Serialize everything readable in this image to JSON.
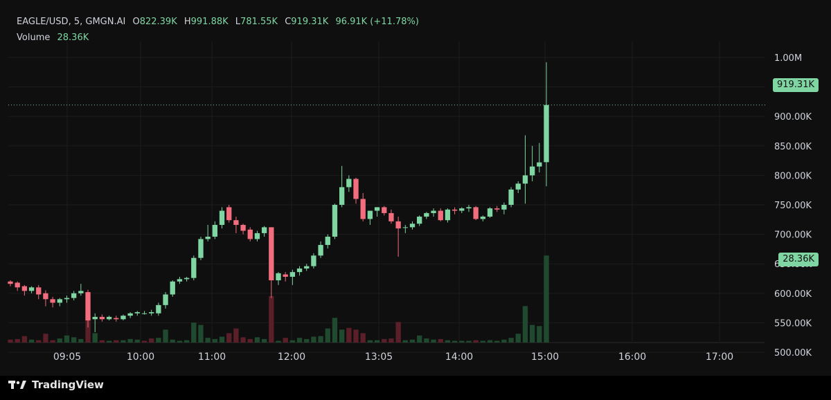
{
  "legend": {
    "symbol": "EAGLE/USD, 5, GMGN.AI",
    "open_label": "O",
    "open": "822.39K",
    "high_label": "H",
    "high": "991.88K",
    "low_label": "L",
    "low": "781.55K",
    "close_label": "C",
    "close": "919.31K",
    "change": "96.91K (+11.78%)",
    "volume_label": "Volume",
    "volume": "28.36K"
  },
  "price_tag": "919.31K",
  "volume_tag": "28.36K",
  "footer": {
    "brand": "TradingView"
  },
  "colors": {
    "up": "#7fd6a3",
    "down": "#f26d7d",
    "up_vol": "#1f4a2f",
    "down_vol": "#5a1f28",
    "bg": "#0f0f0f",
    "grid": "#1c1c1c",
    "text": "#d1d4dc"
  },
  "chart_data": {
    "type": "candlestick",
    "interval": "5",
    "yticks": [
      "1.00M",
      "950.00K",
      "900.00K",
      "850.00K",
      "800.00K",
      "750.00K",
      "700.00K",
      "650.00K",
      "600.00K",
      "550.00K",
      "500.00K"
    ],
    "ytick_values": [
      1000000,
      950000,
      900000,
      850000,
      800000,
      750000,
      700000,
      650000,
      600000,
      550000,
      500000
    ],
    "xticks": [
      "09:05",
      "10:00",
      "11:00",
      "12:00",
      "13:05",
      "14:00",
      "15:00",
      "16:00",
      "17:00"
    ],
    "ylim": [
      485000,
      1030000
    ],
    "last_price": 919310,
    "last_volume": 28360,
    "candles": [
      {
        "o": 620,
        "h": 622,
        "l": 612,
        "c": 616
      },
      {
        "o": 618,
        "h": 620,
        "l": 604,
        "c": 610
      },
      {
        "o": 612,
        "h": 614,
        "l": 596,
        "c": 604
      },
      {
        "o": 604,
        "h": 612,
        "l": 600,
        "c": 610
      },
      {
        "o": 610,
        "h": 614,
        "l": 590,
        "c": 598
      },
      {
        "o": 600,
        "h": 605,
        "l": 578,
        "c": 590
      },
      {
        "o": 590,
        "h": 594,
        "l": 576,
        "c": 584
      },
      {
        "o": 584,
        "h": 592,
        "l": 578,
        "c": 590
      },
      {
        "o": 590,
        "h": 596,
        "l": 584,
        "c": 592
      },
      {
        "o": 592,
        "h": 604,
        "l": 588,
        "c": 600
      },
      {
        "o": 600,
        "h": 616,
        "l": 596,
        "c": 604
      },
      {
        "o": 602,
        "h": 606,
        "l": 542,
        "c": 554
      },
      {
        "o": 556,
        "h": 566,
        "l": 534,
        "c": 560
      },
      {
        "o": 560,
        "h": 564,
        "l": 552,
        "c": 556
      },
      {
        "o": 556,
        "h": 562,
        "l": 554,
        "c": 560
      },
      {
        "o": 558,
        "h": 562,
        "l": 552,
        "c": 556
      },
      {
        "o": 556,
        "h": 564,
        "l": 554,
        "c": 562
      },
      {
        "o": 562,
        "h": 568,
        "l": 558,
        "c": 566
      },
      {
        "o": 566,
        "h": 570,
        "l": 562,
        "c": 568
      },
      {
        "o": 566,
        "h": 570,
        "l": 564,
        "c": 566
      },
      {
        "o": 566,
        "h": 572,
        "l": 562,
        "c": 568
      },
      {
        "o": 566,
        "h": 584,
        "l": 562,
        "c": 580
      },
      {
        "o": 580,
        "h": 602,
        "l": 574,
        "c": 598
      },
      {
        "o": 598,
        "h": 622,
        "l": 594,
        "c": 620
      },
      {
        "o": 620,
        "h": 628,
        "l": 616,
        "c": 624
      },
      {
        "o": 624,
        "h": 628,
        "l": 620,
        "c": 626
      },
      {
        "o": 626,
        "h": 664,
        "l": 622,
        "c": 660
      },
      {
        "o": 660,
        "h": 696,
        "l": 656,
        "c": 692
      },
      {
        "o": 692,
        "h": 716,
        "l": 688,
        "c": 696
      },
      {
        "o": 696,
        "h": 722,
        "l": 692,
        "c": 716
      },
      {
        "o": 716,
        "h": 746,
        "l": 710,
        "c": 740
      },
      {
        "o": 746,
        "h": 750,
        "l": 720,
        "c": 724
      },
      {
        "o": 724,
        "h": 730,
        "l": 702,
        "c": 716
      },
      {
        "o": 716,
        "h": 718,
        "l": 700,
        "c": 706
      },
      {
        "o": 708,
        "h": 712,
        "l": 688,
        "c": 692
      },
      {
        "o": 692,
        "h": 706,
        "l": 688,
        "c": 702
      },
      {
        "o": 702,
        "h": 714,
        "l": 696,
        "c": 712
      },
      {
        "o": 712,
        "h": 712,
        "l": 592,
        "c": 622
      },
      {
        "o": 622,
        "h": 636,
        "l": 614,
        "c": 634
      },
      {
        "o": 632,
        "h": 636,
        "l": 620,
        "c": 628
      },
      {
        "o": 628,
        "h": 640,
        "l": 614,
        "c": 636
      },
      {
        "o": 636,
        "h": 646,
        "l": 630,
        "c": 642
      },
      {
        "o": 642,
        "h": 650,
        "l": 638,
        "c": 646
      },
      {
        "o": 646,
        "h": 668,
        "l": 642,
        "c": 664
      },
      {
        "o": 664,
        "h": 688,
        "l": 660,
        "c": 682
      },
      {
        "o": 682,
        "h": 700,
        "l": 676,
        "c": 696
      },
      {
        "o": 696,
        "h": 752,
        "l": 692,
        "c": 750
      },
      {
        "o": 750,
        "h": 816,
        "l": 746,
        "c": 780
      },
      {
        "o": 780,
        "h": 800,
        "l": 772,
        "c": 794
      },
      {
        "o": 794,
        "h": 796,
        "l": 752,
        "c": 760
      },
      {
        "o": 760,
        "h": 770,
        "l": 722,
        "c": 726
      },
      {
        "o": 726,
        "h": 736,
        "l": 716,
        "c": 740
      },
      {
        "o": 740,
        "h": 746,
        "l": 730,
        "c": 746
      },
      {
        "o": 746,
        "h": 748,
        "l": 732,
        "c": 736
      },
      {
        "o": 736,
        "h": 742,
        "l": 718,
        "c": 722
      },
      {
        "o": 722,
        "h": 730,
        "l": 662,
        "c": 710
      },
      {
        "o": 712,
        "h": 716,
        "l": 702,
        "c": 712
      },
      {
        "o": 712,
        "h": 722,
        "l": 708,
        "c": 718
      },
      {
        "o": 718,
        "h": 732,
        "l": 714,
        "c": 730
      },
      {
        "o": 730,
        "h": 738,
        "l": 726,
        "c": 736
      },
      {
        "o": 736,
        "h": 744,
        "l": 730,
        "c": 740
      },
      {
        "o": 740,
        "h": 744,
        "l": 722,
        "c": 724
      },
      {
        "o": 724,
        "h": 744,
        "l": 720,
        "c": 742
      },
      {
        "o": 742,
        "h": 746,
        "l": 734,
        "c": 740
      },
      {
        "o": 740,
        "h": 746,
        "l": 736,
        "c": 744
      },
      {
        "o": 744,
        "h": 750,
        "l": 738,
        "c": 746
      },
      {
        "o": 746,
        "h": 748,
        "l": 724,
        "c": 726
      },
      {
        "o": 726,
        "h": 732,
        "l": 722,
        "c": 730
      },
      {
        "o": 730,
        "h": 746,
        "l": 728,
        "c": 744
      },
      {
        "o": 744,
        "h": 748,
        "l": 738,
        "c": 742
      },
      {
        "o": 742,
        "h": 754,
        "l": 734,
        "c": 750
      },
      {
        "o": 750,
        "h": 780,
        "l": 746,
        "c": 776
      },
      {
        "o": 776,
        "h": 790,
        "l": 770,
        "c": 786
      },
      {
        "o": 786,
        "h": 868,
        "l": 752,
        "c": 800
      },
      {
        "o": 800,
        "h": 850,
        "l": 790,
        "c": 815
      },
      {
        "o": 815,
        "h": 855,
        "l": 805,
        "c": 822
      },
      {
        "o": 822.39,
        "h": 991.88,
        "l": 781.55,
        "c": 919.31
      }
    ],
    "volumes": [
      {
        "v": 5,
        "up": false
      },
      {
        "v": 6,
        "up": false
      },
      {
        "v": 11,
        "up": false
      },
      {
        "v": 5,
        "up": true
      },
      {
        "v": 4,
        "up": false
      },
      {
        "v": 15,
        "up": false
      },
      {
        "v": 4,
        "up": false
      },
      {
        "v": 7,
        "up": true
      },
      {
        "v": 12,
        "up": true
      },
      {
        "v": 9,
        "up": true
      },
      {
        "v": 6,
        "up": true
      },
      {
        "v": 50,
        "up": false
      },
      {
        "v": 16,
        "up": true
      },
      {
        "v": 4,
        "up": false
      },
      {
        "v": 3,
        "up": true
      },
      {
        "v": 4,
        "up": false
      },
      {
        "v": 4,
        "up": true
      },
      {
        "v": 6,
        "up": true
      },
      {
        "v": 5,
        "up": true
      },
      {
        "v": 3,
        "up": false
      },
      {
        "v": 7,
        "up": false
      },
      {
        "v": 8,
        "up": true
      },
      {
        "v": 22,
        "up": true
      },
      {
        "v": 5,
        "up": true
      },
      {
        "v": 3,
        "up": true
      },
      {
        "v": 4,
        "up": true
      },
      {
        "v": 34,
        "up": true
      },
      {
        "v": 30,
        "up": true
      },
      {
        "v": 8,
        "up": true
      },
      {
        "v": 6,
        "up": true
      },
      {
        "v": 10,
        "up": true
      },
      {
        "v": 16,
        "up": false
      },
      {
        "v": 24,
        "up": false
      },
      {
        "v": 9,
        "up": false
      },
      {
        "v": 6,
        "up": false
      },
      {
        "v": 9,
        "up": true
      },
      {
        "v": 6,
        "up": true
      },
      {
        "v": 79,
        "up": false
      },
      {
        "v": 3,
        "up": true
      },
      {
        "v": 8,
        "up": false
      },
      {
        "v": 4,
        "up": true
      },
      {
        "v": 8,
        "up": true
      },
      {
        "v": 6,
        "up": true
      },
      {
        "v": 10,
        "up": true
      },
      {
        "v": 11,
        "up": true
      },
      {
        "v": 24,
        "up": true
      },
      {
        "v": 42,
        "up": true
      },
      {
        "v": 22,
        "up": true
      },
      {
        "v": 25,
        "up": false
      },
      {
        "v": 22,
        "up": false
      },
      {
        "v": 16,
        "up": false
      },
      {
        "v": 4,
        "up": true
      },
      {
        "v": 4,
        "up": true
      },
      {
        "v": 6,
        "up": false
      },
      {
        "v": 7,
        "up": false
      },
      {
        "v": 35,
        "up": false
      },
      {
        "v": 4,
        "up": true
      },
      {
        "v": 5,
        "up": true
      },
      {
        "v": 12,
        "up": true
      },
      {
        "v": 7,
        "up": true
      },
      {
        "v": 5,
        "up": true
      },
      {
        "v": 6,
        "up": false
      },
      {
        "v": 4,
        "up": true
      },
      {
        "v": 3,
        "up": true
      },
      {
        "v": 3,
        "up": true
      },
      {
        "v": 3,
        "up": true
      },
      {
        "v": 4,
        "up": false
      },
      {
        "v": 3,
        "up": true
      },
      {
        "v": 4,
        "up": true
      },
      {
        "v": 3,
        "up": true
      },
      {
        "v": 5,
        "up": true
      },
      {
        "v": 8,
        "up": true
      },
      {
        "v": 15,
        "up": true
      },
      {
        "v": 62,
        "up": true
      },
      {
        "v": 30,
        "up": true
      },
      {
        "v": 28,
        "up": true
      },
      {
        "v": 148,
        "up": true
      }
    ]
  }
}
